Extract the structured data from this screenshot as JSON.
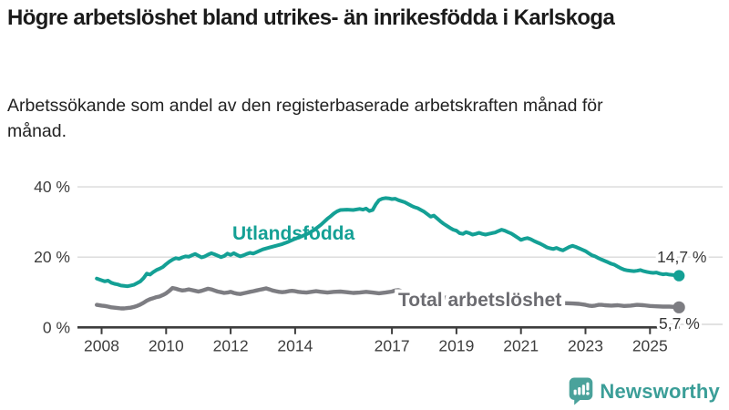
{
  "header": {
    "title": "Högre arbetslöshet bland utrikes- än inrikesfödda i Karlskoga",
    "subtitle": "Arbetssökande som andel av den registerbaserade arbetskraften månad för månad."
  },
  "footer": {
    "brand": "Newsworthy",
    "logo_icon": "speech-bubble-bar-chart-icon"
  },
  "colors": {
    "accent_teal": "#14a095",
    "series_gray": "#7d7d82",
    "gray_label": "#6c6c71",
    "logo_teal": "#3b9e98",
    "grid": "#d9d9d9",
    "axis": "#3d3d3d",
    "text_dark": "#383838"
  },
  "chart_data": {
    "type": "line",
    "unit": "%",
    "title": "Högre arbetslöshet bland utrikes- än inrikesfödda i Karlskoga",
    "xlabel": "",
    "ylabel": "",
    "xlim": [
      2007.85,
      2025.9
    ],
    "ylim": [
      0,
      42
    ],
    "grid": "horizontal",
    "legend_position": "inline-labels",
    "x_ticks": [
      2008,
      2010,
      2012,
      2014,
      2017,
      2019,
      2021,
      2023,
      2025
    ],
    "y_ticks": [
      {
        "value": 0,
        "label": "0 %"
      },
      {
        "value": 20,
        "label": "20 %"
      },
      {
        "value": 40,
        "label": "40 %"
      }
    ],
    "series": [
      {
        "name": "Utlandsfödda",
        "color": "#14a095",
        "end_label": "14,7 %",
        "end_value": 14.7,
        "points": [
          [
            2007.85,
            13.9
          ],
          [
            2008.0,
            13.4
          ],
          [
            2008.1,
            13.1
          ],
          [
            2008.2,
            13.3
          ],
          [
            2008.3,
            12.7
          ],
          [
            2008.4,
            12.4
          ],
          [
            2008.5,
            12.2
          ],
          [
            2008.6,
            11.9
          ],
          [
            2008.7,
            11.8
          ],
          [
            2008.8,
            11.7
          ],
          [
            2008.9,
            11.9
          ],
          [
            2009.0,
            12.1
          ],
          [
            2009.1,
            12.6
          ],
          [
            2009.2,
            13.1
          ],
          [
            2009.3,
            14.0
          ],
          [
            2009.4,
            15.3
          ],
          [
            2009.5,
            15.0
          ],
          [
            2009.6,
            15.7
          ],
          [
            2009.7,
            16.3
          ],
          [
            2009.8,
            16.7
          ],
          [
            2009.9,
            17.2
          ],
          [
            2010.0,
            18.0
          ],
          [
            2010.1,
            18.7
          ],
          [
            2010.2,
            19.3
          ],
          [
            2010.3,
            19.7
          ],
          [
            2010.4,
            19.5
          ],
          [
            2010.5,
            19.9
          ],
          [
            2010.6,
            20.2
          ],
          [
            2010.7,
            20.1
          ],
          [
            2010.8,
            20.5
          ],
          [
            2010.9,
            20.9
          ],
          [
            2011.0,
            20.4
          ],
          [
            2011.1,
            19.9
          ],
          [
            2011.2,
            20.2
          ],
          [
            2011.3,
            20.7
          ],
          [
            2011.4,
            21.1
          ],
          [
            2011.5,
            20.8
          ],
          [
            2011.6,
            20.4
          ],
          [
            2011.7,
            20.0
          ],
          [
            2011.8,
            20.3
          ],
          [
            2011.9,
            21.0
          ],
          [
            2012.0,
            20.6
          ],
          [
            2012.1,
            21.1
          ],
          [
            2012.2,
            20.6
          ],
          [
            2012.3,
            20.2
          ],
          [
            2012.4,
            20.5
          ],
          [
            2012.5,
            20.9
          ],
          [
            2012.6,
            21.2
          ],
          [
            2012.7,
            21.0
          ],
          [
            2012.8,
            21.4
          ],
          [
            2012.9,
            21.8
          ],
          [
            2013.0,
            22.2
          ],
          [
            2013.2,
            22.7
          ],
          [
            2013.4,
            23.2
          ],
          [
            2013.6,
            23.7
          ],
          [
            2013.8,
            24.4
          ],
          [
            2014.0,
            25.2
          ],
          [
            2014.2,
            25.9
          ],
          [
            2014.4,
            26.7
          ],
          [
            2014.6,
            27.8
          ],
          [
            2014.8,
            29.2
          ],
          [
            2015.0,
            30.9
          ],
          [
            2015.1,
            31.6
          ],
          [
            2015.2,
            32.4
          ],
          [
            2015.3,
            33.0
          ],
          [
            2015.4,
            33.4
          ],
          [
            2015.6,
            33.5
          ],
          [
            2015.8,
            33.4
          ],
          [
            2016.0,
            33.7
          ],
          [
            2016.1,
            33.5
          ],
          [
            2016.2,
            33.8
          ],
          [
            2016.3,
            33.1
          ],
          [
            2016.4,
            33.4
          ],
          [
            2016.5,
            35.0
          ],
          [
            2016.6,
            36.2
          ],
          [
            2016.7,
            36.6
          ],
          [
            2016.8,
            36.8
          ],
          [
            2016.9,
            36.7
          ],
          [
            2017.0,
            36.5
          ],
          [
            2017.1,
            36.6
          ],
          [
            2017.2,
            36.2
          ],
          [
            2017.3,
            35.9
          ],
          [
            2017.4,
            35.6
          ],
          [
            2017.5,
            35.1
          ],
          [
            2017.6,
            34.6
          ],
          [
            2017.7,
            34.2
          ],
          [
            2017.8,
            33.9
          ],
          [
            2017.9,
            33.4
          ],
          [
            2018.0,
            32.9
          ],
          [
            2018.1,
            32.2
          ],
          [
            2018.2,
            31.5
          ],
          [
            2018.3,
            31.8
          ],
          [
            2018.4,
            31.0
          ],
          [
            2018.5,
            30.2
          ],
          [
            2018.6,
            29.5
          ],
          [
            2018.7,
            28.9
          ],
          [
            2018.8,
            28.3
          ],
          [
            2018.9,
            27.8
          ],
          [
            2019.0,
            27.5
          ],
          [
            2019.1,
            26.8
          ],
          [
            2019.2,
            26.6
          ],
          [
            2019.3,
            27.1
          ],
          [
            2019.4,
            26.8
          ],
          [
            2019.5,
            26.4
          ],
          [
            2019.6,
            26.6
          ],
          [
            2019.7,
            26.9
          ],
          [
            2019.8,
            26.6
          ],
          [
            2019.9,
            26.4
          ],
          [
            2020.0,
            26.6
          ],
          [
            2020.1,
            26.8
          ],
          [
            2020.2,
            27.0
          ],
          [
            2020.3,
            27.4
          ],
          [
            2020.4,
            27.8
          ],
          [
            2020.5,
            27.5
          ],
          [
            2020.6,
            27.1
          ],
          [
            2020.7,
            26.7
          ],
          [
            2020.8,
            26.1
          ],
          [
            2020.9,
            25.5
          ],
          [
            2021.0,
            24.9
          ],
          [
            2021.1,
            25.2
          ],
          [
            2021.2,
            25.4
          ],
          [
            2021.3,
            25.1
          ],
          [
            2021.4,
            24.6
          ],
          [
            2021.5,
            24.2
          ],
          [
            2021.6,
            23.8
          ],
          [
            2021.7,
            23.3
          ],
          [
            2021.8,
            22.8
          ],
          [
            2021.9,
            22.5
          ],
          [
            2022.0,
            22.3
          ],
          [
            2022.1,
            22.6
          ],
          [
            2022.2,
            22.2
          ],
          [
            2022.3,
            21.9
          ],
          [
            2022.4,
            22.4
          ],
          [
            2022.5,
            22.9
          ],
          [
            2022.6,
            23.2
          ],
          [
            2022.7,
            22.9
          ],
          [
            2022.8,
            22.5
          ],
          [
            2022.9,
            22.1
          ],
          [
            2023.0,
            21.7
          ],
          [
            2023.1,
            21.1
          ],
          [
            2023.2,
            20.5
          ],
          [
            2023.3,
            20.2
          ],
          [
            2023.4,
            19.7
          ],
          [
            2023.5,
            19.3
          ],
          [
            2023.6,
            18.9
          ],
          [
            2023.7,
            18.5
          ],
          [
            2023.8,
            18.1
          ],
          [
            2023.9,
            17.8
          ],
          [
            2024.0,
            17.3
          ],
          [
            2024.1,
            16.8
          ],
          [
            2024.2,
            16.4
          ],
          [
            2024.3,
            16.2
          ],
          [
            2024.4,
            16.1
          ],
          [
            2024.5,
            16.0
          ],
          [
            2024.6,
            16.1
          ],
          [
            2024.7,
            16.3
          ],
          [
            2024.8,
            16.0
          ],
          [
            2024.9,
            15.8
          ],
          [
            2025.0,
            15.6
          ],
          [
            2025.1,
            15.5
          ],
          [
            2025.2,
            15.6
          ],
          [
            2025.3,
            15.3
          ],
          [
            2025.4,
            15.1
          ],
          [
            2025.5,
            15.2
          ],
          [
            2025.6,
            15.0
          ],
          [
            2025.7,
            14.9
          ],
          [
            2025.8,
            14.8
          ],
          [
            2025.9,
            14.7
          ]
        ]
      },
      {
        "name": "Total arbetslöshet",
        "color": "#7d7d82",
        "end_label": "5,7 %",
        "end_value": 5.7,
        "points": [
          [
            2007.85,
            6.4
          ],
          [
            2008.0,
            6.2
          ],
          [
            2008.1,
            6.1
          ],
          [
            2008.2,
            5.9
          ],
          [
            2008.3,
            5.7
          ],
          [
            2008.4,
            5.6
          ],
          [
            2008.5,
            5.5
          ],
          [
            2008.6,
            5.4
          ],
          [
            2008.7,
            5.4
          ],
          [
            2008.8,
            5.5
          ],
          [
            2008.9,
            5.6
          ],
          [
            2009.0,
            5.8
          ],
          [
            2009.1,
            6.1
          ],
          [
            2009.2,
            6.5
          ],
          [
            2009.3,
            7.0
          ],
          [
            2009.4,
            7.6
          ],
          [
            2009.5,
            8.0
          ],
          [
            2009.6,
            8.3
          ],
          [
            2009.7,
            8.6
          ],
          [
            2009.8,
            8.8
          ],
          [
            2009.9,
            9.2
          ],
          [
            2010.0,
            9.7
          ],
          [
            2010.1,
            10.4
          ],
          [
            2010.2,
            11.2
          ],
          [
            2010.3,
            11.0
          ],
          [
            2010.4,
            10.7
          ],
          [
            2010.5,
            10.5
          ],
          [
            2010.6,
            10.6
          ],
          [
            2010.7,
            10.8
          ],
          [
            2010.8,
            10.6
          ],
          [
            2010.9,
            10.4
          ],
          [
            2011.0,
            10.2
          ],
          [
            2011.1,
            10.4
          ],
          [
            2011.2,
            10.7
          ],
          [
            2011.3,
            11.0
          ],
          [
            2011.4,
            10.8
          ],
          [
            2011.5,
            10.5
          ],
          [
            2011.6,
            10.2
          ],
          [
            2011.7,
            10.0
          ],
          [
            2011.8,
            9.8
          ],
          [
            2011.9,
            9.9
          ],
          [
            2012.0,
            10.1
          ],
          [
            2012.1,
            9.8
          ],
          [
            2012.2,
            9.6
          ],
          [
            2012.3,
            9.5
          ],
          [
            2012.4,
            9.7
          ],
          [
            2012.5,
            9.9
          ],
          [
            2012.6,
            10.1
          ],
          [
            2012.7,
            10.3
          ],
          [
            2012.8,
            10.5
          ],
          [
            2012.9,
            10.7
          ],
          [
            2013.0,
            10.9
          ],
          [
            2013.1,
            11.1
          ],
          [
            2013.2,
            10.8
          ],
          [
            2013.3,
            10.5
          ],
          [
            2013.4,
            10.3
          ],
          [
            2013.5,
            10.1
          ],
          [
            2013.6,
            10.0
          ],
          [
            2013.7,
            10.1
          ],
          [
            2013.8,
            10.3
          ],
          [
            2013.9,
            10.4
          ],
          [
            2014.0,
            10.3
          ],
          [
            2014.1,
            10.1
          ],
          [
            2014.2,
            10.0
          ],
          [
            2014.35,
            9.9
          ],
          [
            2014.5,
            10.1
          ],
          [
            2014.65,
            10.3
          ],
          [
            2014.8,
            10.1
          ],
          [
            2015.0,
            9.9
          ],
          [
            2015.2,
            10.1
          ],
          [
            2015.4,
            10.2
          ],
          [
            2015.6,
            10.0
          ],
          [
            2015.8,
            9.8
          ],
          [
            2016.0,
            9.9
          ],
          [
            2016.2,
            10.1
          ],
          [
            2016.4,
            9.9
          ],
          [
            2016.6,
            9.7
          ],
          [
            2016.8,
            9.9
          ],
          [
            2017.0,
            10.2
          ],
          [
            2017.1,
            10.5
          ],
          [
            2017.2,
            10.6
          ],
          [
            2017.3,
            10.3
          ],
          [
            2017.4,
            10.0
          ],
          [
            2017.5,
            9.7
          ],
          [
            2017.6,
            9.4
          ],
          [
            2017.8,
            9.1
          ],
          [
            2018.0,
            8.9
          ],
          [
            2018.3,
            8.7
          ],
          [
            2018.6,
            8.5
          ],
          [
            2019.0,
            8.2
          ],
          [
            2019.5,
            8.0
          ],
          [
            2020.0,
            8.1
          ],
          [
            2020.3,
            8.4
          ],
          [
            2020.6,
            8.3
          ],
          [
            2021.0,
            7.9
          ],
          [
            2021.5,
            7.5
          ],
          [
            2022.0,
            7.1
          ],
          [
            2022.3,
            6.9
          ],
          [
            2022.6,
            6.8
          ],
          [
            2022.8,
            6.7
          ],
          [
            2023.0,
            6.4
          ],
          [
            2023.1,
            6.2
          ],
          [
            2023.2,
            6.1
          ],
          [
            2023.3,
            6.2
          ],
          [
            2023.4,
            6.4
          ],
          [
            2023.5,
            6.4
          ],
          [
            2023.6,
            6.3
          ],
          [
            2023.8,
            6.2
          ],
          [
            2024.0,
            6.3
          ],
          [
            2024.2,
            6.1
          ],
          [
            2024.4,
            6.2
          ],
          [
            2024.6,
            6.4
          ],
          [
            2024.8,
            6.3
          ],
          [
            2025.0,
            6.1
          ],
          [
            2025.2,
            6.0
          ],
          [
            2025.4,
            5.9
          ],
          [
            2025.6,
            5.9
          ],
          [
            2025.8,
            5.8
          ],
          [
            2025.9,
            5.7
          ]
        ]
      }
    ]
  }
}
